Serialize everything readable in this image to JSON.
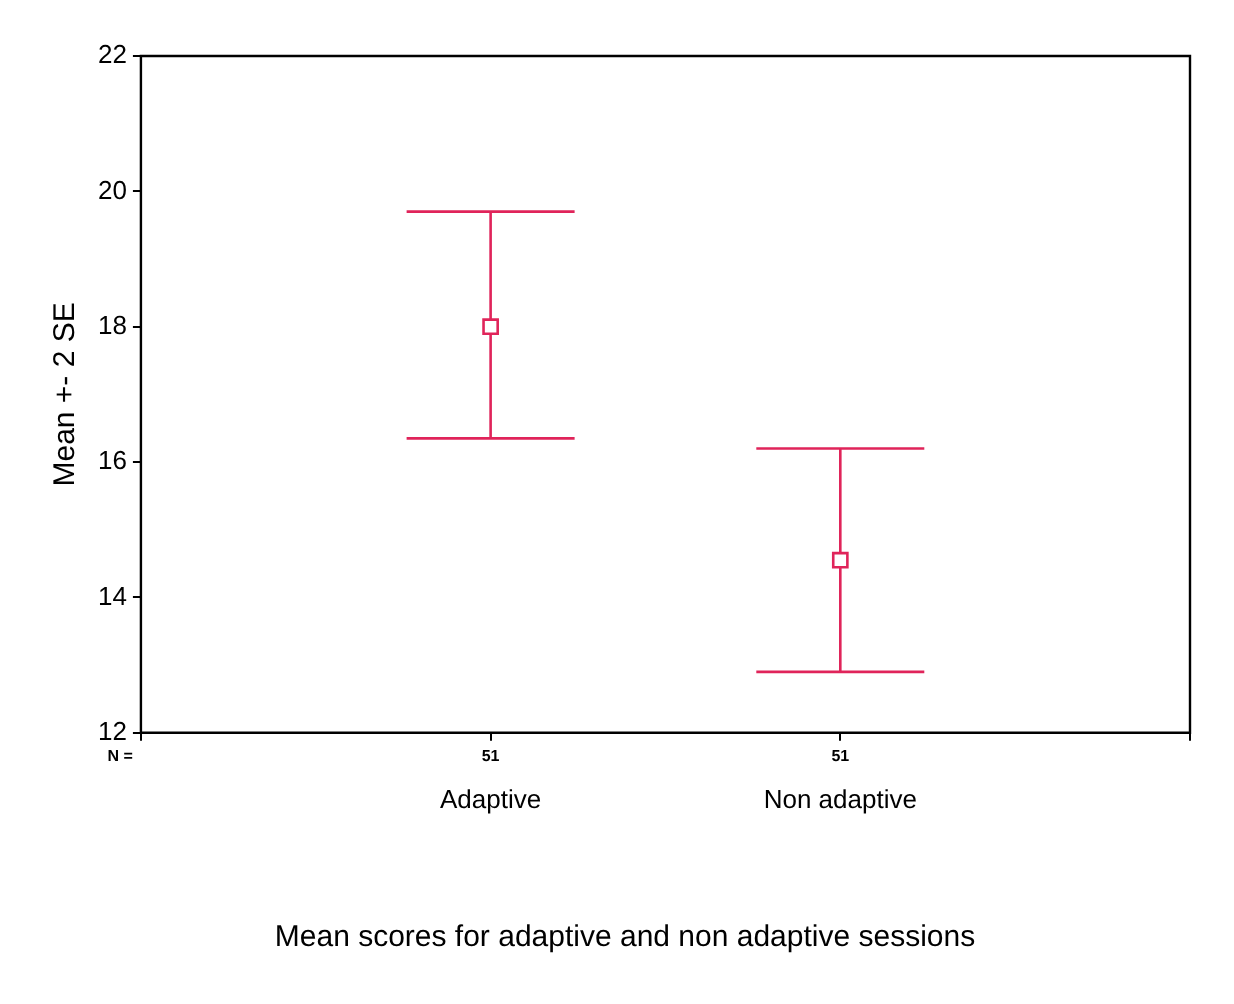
{
  "chart_data": {
    "type": "scatter",
    "title": "Mean scores for adaptive and non adaptive sessions",
    "ylabel": "Mean +- 2 SE",
    "categories": [
      null,
      "Adaptive",
      "Non adaptive",
      null
    ],
    "values": [
      null,
      18.0,
      14.55,
      null
    ],
    "errors": [
      null,
      [
        16.35,
        19.7
      ],
      [
        12.9,
        16.2
      ],
      null
    ],
    "color": "#e0245a",
    "ylim": [
      12,
      22
    ],
    "yticks": [
      12,
      14,
      16,
      18,
      20,
      22
    ],
    "marker": "square",
    "annotations": [
      "N =",
      "51",
      "51"
    ]
  }
}
